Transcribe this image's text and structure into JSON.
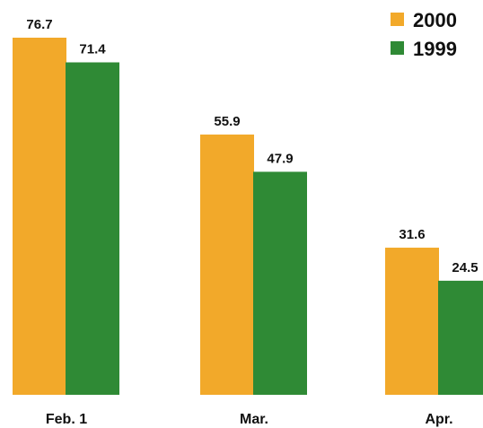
{
  "chart_data": {
    "type": "bar",
    "categories": [
      "Feb. 1",
      "Mar.",
      "Apr."
    ],
    "series": [
      {
        "name": "2000",
        "values": [
          76.7,
          55.9,
          31.6
        ],
        "value_labels": [
          "76.7",
          "55.9",
          "31.6"
        ],
        "color": "#f2a92a"
      },
      {
        "name": "1999",
        "values": [
          71.4,
          47.9,
          24.5
        ],
        "value_labels": [
          "71.4",
          "47.9",
          "24.5"
        ],
        "color": "#2f8a35"
      }
    ],
    "title": "",
    "xlabel": "",
    "ylabel": "",
    "ylim": [
      0,
      80
    ],
    "grid": false,
    "legend": "top-right"
  }
}
